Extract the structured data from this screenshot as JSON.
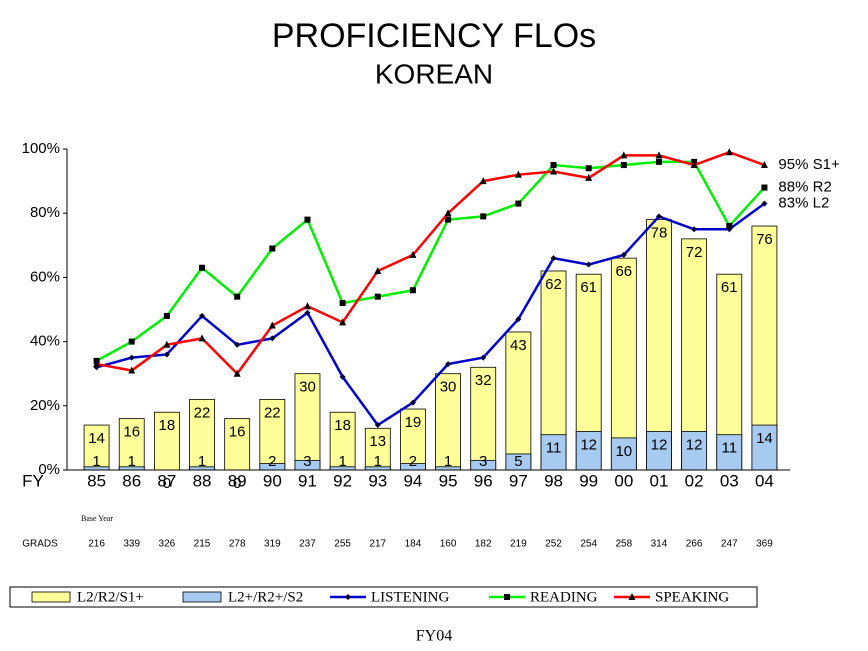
{
  "chart_data": {
    "type": "bar",
    "title": "PROFICIENCY FLOs",
    "subtitle": "KOREAN",
    "x_prefix": "FY",
    "base_year_note": "Base Year",
    "grads_label": "GRADS",
    "footer": "FY04",
    "categories": [
      "85",
      "86",
      "87",
      "88",
      "89",
      "90",
      "91",
      "92",
      "93",
      "94",
      "95",
      "96",
      "97",
      "98",
      "99",
      "00",
      "01",
      "02",
      "03",
      "04"
    ],
    "grads": [
      216,
      339,
      326,
      215,
      278,
      319,
      237,
      255,
      217,
      184,
      160,
      182,
      219,
      252,
      254,
      258,
      314,
      266,
      247,
      369
    ],
    "ylim": [
      0,
      100
    ],
    "yticks": [
      {
        "value": 0,
        "label": "0%"
      },
      {
        "value": 20,
        "label": "20%"
      },
      {
        "value": 40,
        "label": "40%"
      },
      {
        "value": 60,
        "label": "60%"
      },
      {
        "value": 80,
        "label": "80%"
      },
      {
        "value": 100,
        "label": "100%"
      }
    ],
    "grid": false,
    "series": [
      {
        "name": "L2/R2/S1+",
        "kind": "bar",
        "color": "#ffff99",
        "values": [
          14,
          16,
          18,
          22,
          16,
          22,
          30,
          18,
          13,
          19,
          30,
          32,
          43,
          62,
          61,
          66,
          78,
          72,
          61,
          76
        ]
      },
      {
        "name": "L2+/R2+/S2",
        "kind": "bar",
        "color": "#a6caf0",
        "values": [
          1,
          1,
          0,
          1,
          0,
          2,
          3,
          1,
          1,
          2,
          1,
          3,
          5,
          11,
          12,
          10,
          12,
          12,
          11,
          14
        ]
      },
      {
        "name": "LISTENING",
        "kind": "line",
        "marker": "diamond",
        "color": "#0000cc",
        "values": [
          32,
          35,
          36,
          48,
          39,
          41,
          49,
          29,
          14,
          21,
          33,
          35,
          47,
          66,
          64,
          67,
          79,
          75,
          75,
          83
        ],
        "end_label": "83% L2"
      },
      {
        "name": "READING",
        "kind": "line",
        "marker": "square",
        "color": "#00ee00",
        "values": [
          34,
          40,
          48,
          63,
          54,
          69,
          78,
          52,
          54,
          56,
          78,
          79,
          83,
          95,
          94,
          95,
          96,
          96,
          76,
          88
        ],
        "end_label": "88% R2"
      },
      {
        "name": "SPEAKING",
        "kind": "line",
        "marker": "triangle",
        "color": "#ff0000",
        "values": [
          33,
          31,
          39,
          41,
          30,
          45,
          51,
          46,
          62,
          67,
          80,
          90,
          92,
          93,
          91,
          98,
          98,
          95,
          99,
          95
        ],
        "end_label": "95% S1+"
      }
    ]
  }
}
